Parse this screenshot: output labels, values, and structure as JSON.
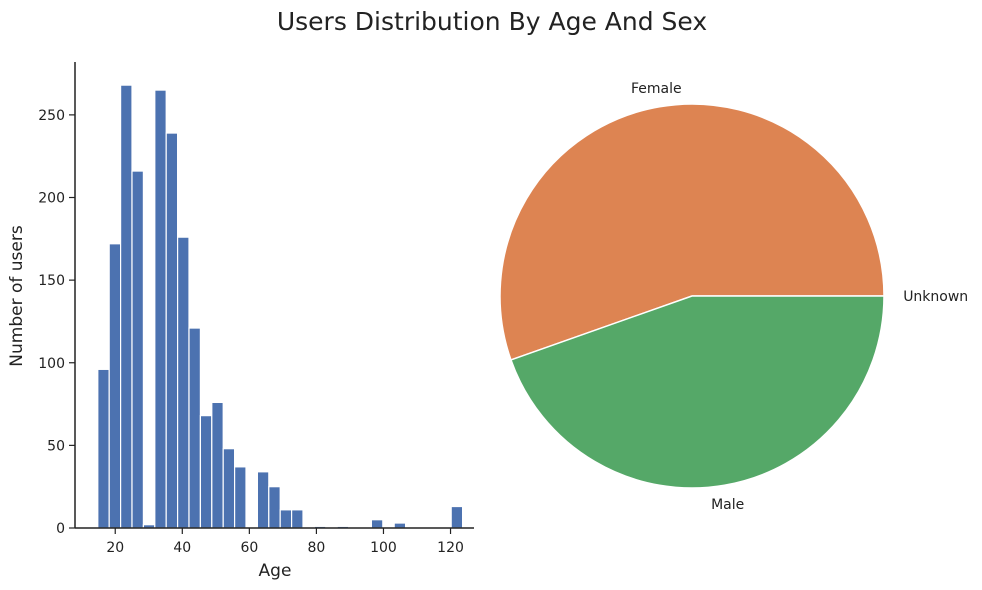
{
  "figure": {
    "title": "Users Distribution By Age And Sex"
  },
  "chart_data": [
    {
      "type": "bar",
      "subtype": "histogram",
      "title": "",
      "xlabel": "Age",
      "ylabel": "Number of users",
      "xlim": [
        8,
        127
      ],
      "ylim": [
        0,
        282
      ],
      "xticks": [
        20,
        40,
        60,
        80,
        100,
        120
      ],
      "yticks": [
        0,
        50,
        100,
        150,
        200,
        250
      ],
      "grid": false,
      "color": "#4c72b0",
      "bins": [
        {
          "x0": 14.8,
          "x1": 18.2,
          "value": 96
        },
        {
          "x0": 18.2,
          "x1": 21.6,
          "value": 172
        },
        {
          "x0": 21.6,
          "x1": 25.0,
          "value": 268
        },
        {
          "x0": 25.0,
          "x1": 28.4,
          "value": 216
        },
        {
          "x0": 28.4,
          "x1": 31.8,
          "value": 2
        },
        {
          "x0": 31.8,
          "x1": 35.2,
          "value": 265
        },
        {
          "x0": 35.2,
          "x1": 38.6,
          "value": 239
        },
        {
          "x0": 38.6,
          "x1": 42.0,
          "value": 176
        },
        {
          "x0": 42.0,
          "x1": 45.4,
          "value": 121
        },
        {
          "x0": 45.4,
          "x1": 48.8,
          "value": 68
        },
        {
          "x0": 48.8,
          "x1": 52.2,
          "value": 76
        },
        {
          "x0": 52.2,
          "x1": 55.6,
          "value": 48
        },
        {
          "x0": 55.6,
          "x1": 59.0,
          "value": 37
        },
        {
          "x0": 59.0,
          "x1": 62.4,
          "value": 0
        },
        {
          "x0": 62.4,
          "x1": 65.8,
          "value": 34
        },
        {
          "x0": 65.8,
          "x1": 69.2,
          "value": 25
        },
        {
          "x0": 69.2,
          "x1": 72.6,
          "value": 11
        },
        {
          "x0": 72.6,
          "x1": 76.0,
          "value": 11
        },
        {
          "x0": 76.0,
          "x1": 79.4,
          "value": 0
        },
        {
          "x0": 79.4,
          "x1": 82.8,
          "value": 1
        },
        {
          "x0": 82.8,
          "x1": 86.2,
          "value": 0
        },
        {
          "x0": 86.2,
          "x1": 89.6,
          "value": 1
        },
        {
          "x0": 89.6,
          "x1": 93.0,
          "value": 0
        },
        {
          "x0": 93.0,
          "x1": 96.4,
          "value": 0
        },
        {
          "x0": 96.4,
          "x1": 99.8,
          "value": 5
        },
        {
          "x0": 99.8,
          "x1": 103.2,
          "value": 0
        },
        {
          "x0": 103.2,
          "x1": 106.6,
          "value": 3
        },
        {
          "x0": 106.6,
          "x1": 110.0,
          "value": 0
        },
        {
          "x0": 110.0,
          "x1": 113.4,
          "value": 0
        },
        {
          "x0": 113.4,
          "x1": 116.8,
          "value": 0
        },
        {
          "x0": 116.8,
          "x1": 120.2,
          "value": 0
        },
        {
          "x0": 120.2,
          "x1": 123.6,
          "value": 13
        }
      ]
    },
    {
      "type": "pie",
      "title": "",
      "start_angle_deg": 0,
      "direction": "counterclockwise",
      "slices": [
        {
          "label": "Female",
          "value": 55.4,
          "color": "#dd8452"
        },
        {
          "label": "Male",
          "value": 44.6,
          "color": "#55a868"
        },
        {
          "label": "Unknown",
          "value": 0.0,
          "color": "#c44e52"
        }
      ]
    }
  ]
}
